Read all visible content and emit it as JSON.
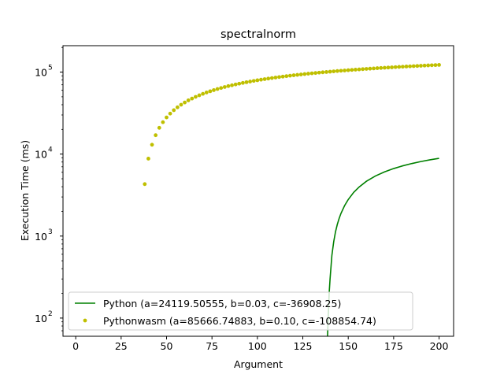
{
  "chart_data": {
    "type": "scatter",
    "title": "spectralnorm",
    "xlabel": "Argument",
    "ylabel": "Execution Time (ms)",
    "xlim": [
      -7,
      208
    ],
    "ylim": [
      60,
      210000
    ],
    "yscale": "log",
    "grid": false,
    "legend_placement": "lower-left",
    "x_ticks": [
      0,
      25,
      50,
      75,
      100,
      125,
      150,
      175,
      200
    ],
    "x_tick_labels": [
      "0",
      "25",
      "50",
      "75",
      "100",
      "125",
      "150",
      "175",
      "200"
    ],
    "y_ticks": [
      100,
      1000,
      10000,
      100000
    ],
    "y_tick_labels": [
      "10",
      "10",
      "10",
      "10"
    ],
    "y_tick_exponents": [
      "2",
      "3",
      "4",
      "5"
    ],
    "series": [
      {
        "name": "Python (a=24119.50555, b=0.03, c=-36908.25)",
        "kind": "line",
        "color": "#008000",
        "x": [
          138.6,
          139,
          139.5,
          140,
          141,
          142,
          143,
          144,
          145,
          146,
          148,
          150,
          153,
          156,
          160,
          165,
          170,
          175,
          180,
          185,
          190,
          195,
          200
        ],
        "y": [
          60,
          103,
          200,
          300,
          580,
          850,
          1130,
          1390,
          1640,
          1890,
          2350,
          2790,
          3410,
          3970,
          4660,
          5410,
          6070,
          6660,
          7190,
          7670,
          8110,
          8510,
          8880
        ]
      },
      {
        "name": "Pythonwasm (a=85666.74883, b=0.10, c=-108854.74)",
        "kind": "scatter",
        "color": "#bfbf00",
        "x": [
          38,
          40,
          42,
          44,
          46,
          48,
          50,
          52,
          54,
          56,
          58,
          60,
          62,
          64,
          66,
          68,
          70,
          72,
          74,
          76,
          78,
          80,
          82,
          84,
          86,
          88,
          90,
          92,
          94,
          96,
          98,
          100,
          102,
          104,
          106,
          108,
          110,
          112,
          114,
          116,
          118,
          120,
          122,
          124,
          126,
          128,
          130,
          132,
          134,
          136,
          138,
          140,
          142,
          144,
          146,
          148,
          150,
          152,
          154,
          156,
          158,
          160,
          162,
          164,
          166,
          168,
          170,
          172,
          174,
          176,
          178,
          180,
          182,
          184,
          186,
          188,
          190,
          192,
          194,
          196,
          198,
          200
        ],
        "y": [
          4300,
          8800,
          13000,
          17000,
          20900,
          24500,
          28000,
          31200,
          34300,
          37200,
          40000,
          42600,
          45200,
          47600,
          49900,
          52100,
          54300,
          56400,
          58400,
          60300,
          62200,
          64000,
          65800,
          67500,
          69100,
          70700,
          72300,
          73800,
          75300,
          76700,
          78100,
          79500,
          80800,
          82100,
          83400,
          84600,
          85800,
          87000,
          88100,
          89300,
          90400,
          91500,
          92500,
          93600,
          94600,
          95600,
          96600,
          97500,
          98500,
          99400,
          100300,
          101200,
          102100,
          103000,
          103800,
          104600,
          105500,
          106300,
          107100,
          107800,
          108600,
          109400,
          110100,
          110800,
          111600,
          112300,
          113000,
          113700,
          114300,
          115000,
          115700,
          116300,
          117000,
          117600,
          118200,
          118800,
          119500,
          120100,
          120700,
          121200,
          121800,
          122400
        ]
      }
    ]
  }
}
